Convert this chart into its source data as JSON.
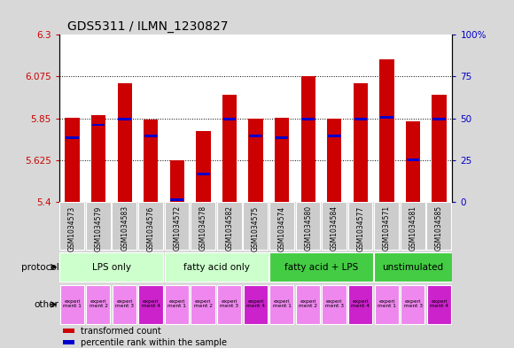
{
  "title": "GDS5311 / ILMN_1230827",
  "samples": [
    "GSM1034573",
    "GSM1034579",
    "GSM1034583",
    "GSM1034576",
    "GSM1034572",
    "GSM1034578",
    "GSM1034582",
    "GSM1034575",
    "GSM1034574",
    "GSM1034580",
    "GSM1034584",
    "GSM1034577",
    "GSM1034571",
    "GSM1034581",
    "GSM1034585"
  ],
  "bar_values": [
    5.855,
    5.865,
    6.04,
    5.845,
    5.625,
    5.78,
    5.975,
    5.85,
    5.855,
    6.075,
    5.85,
    6.04,
    6.17,
    5.835,
    5.975
  ],
  "percentile_values": [
    5.745,
    5.815,
    5.845,
    5.755,
    5.41,
    5.55,
    5.845,
    5.755,
    5.745,
    5.845,
    5.755,
    5.845,
    5.855,
    5.625,
    5.845
  ],
  "ymin": 5.4,
  "ymax": 6.3,
  "yticks": [
    5.4,
    5.625,
    5.85,
    6.075,
    6.3
  ],
  "ytick_labels": [
    "5.4",
    "5.625",
    "5.85",
    "6.075",
    "6.3"
  ],
  "right_yticks": [
    0,
    25,
    50,
    75,
    100
  ],
  "right_ytick_labels": [
    "0",
    "25",
    "50",
    "75",
    "100%"
  ],
  "bar_color": "#cc0000",
  "percentile_color": "#0000cc",
  "bg_color": "#d8d8d8",
  "plot_bg": "#ffffff",
  "protocol_groups": [
    {
      "label": "LPS only",
      "start": 0,
      "end": 4,
      "color": "#ccffcc"
    },
    {
      "label": "fatty acid only",
      "start": 4,
      "end": 8,
      "color": "#ccffcc"
    },
    {
      "label": "fatty acid + LPS",
      "start": 8,
      "end": 12,
      "color": "#44cc44"
    },
    {
      "label": "unstimulated",
      "start": 12,
      "end": 15,
      "color": "#44cc44"
    }
  ],
  "other_colors": [
    "#ee88ee",
    "#ee88ee",
    "#ee88ee",
    "#cc22cc",
    "#ee88ee",
    "#ee88ee",
    "#ee88ee",
    "#cc22cc",
    "#ee88ee",
    "#ee88ee",
    "#ee88ee",
    "#cc22cc",
    "#ee88ee",
    "#ee88ee",
    "#cc22cc"
  ],
  "other_labels": [
    "experi\nment 1",
    "experi\nment 2",
    "experi\nment 3",
    "experi\nment 4",
    "experi\nment 1",
    "experi\nment 2",
    "experi\nment 3",
    "experi\nment 4",
    "experi\nment 1",
    "experi\nment 2",
    "experi\nment 3",
    "experi\nment 4",
    "experi\nment 1",
    "experi\nment 3",
    "experi\nment 4"
  ],
  "legend_items": [
    {
      "color": "#cc0000",
      "label": "transformed count"
    },
    {
      "color": "#0000cc",
      "label": "percentile rank within the sample"
    }
  ],
  "sample_bg": "#cccccc"
}
